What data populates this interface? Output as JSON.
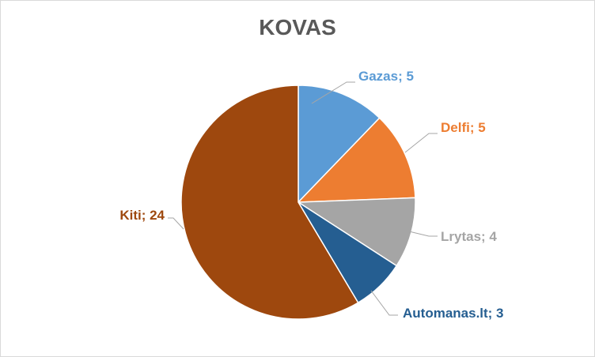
{
  "chart_data": {
    "type": "pie",
    "title": "KOVAS",
    "categories": [
      "Gazas",
      "Delfi",
      "Lrytas",
      "Automanas.lt",
      "Kiti"
    ],
    "values": [
      5,
      5,
      4,
      3,
      24
    ],
    "labels": [
      "Gazas; 5",
      "Delfi; 5",
      "Lrytas; 4",
      "Automanas.lt; 3",
      "Kiti; 24"
    ],
    "colors": [
      "#5b9bd5",
      "#ed7d31",
      "#a5a5a5",
      "#255e91",
      "#9e480e"
    ],
    "label_colors": [
      "#5b9bd5",
      "#ed7d31",
      "#a5a5a5",
      "#255e91",
      "#9e480e"
    ],
    "legend": "none"
  }
}
